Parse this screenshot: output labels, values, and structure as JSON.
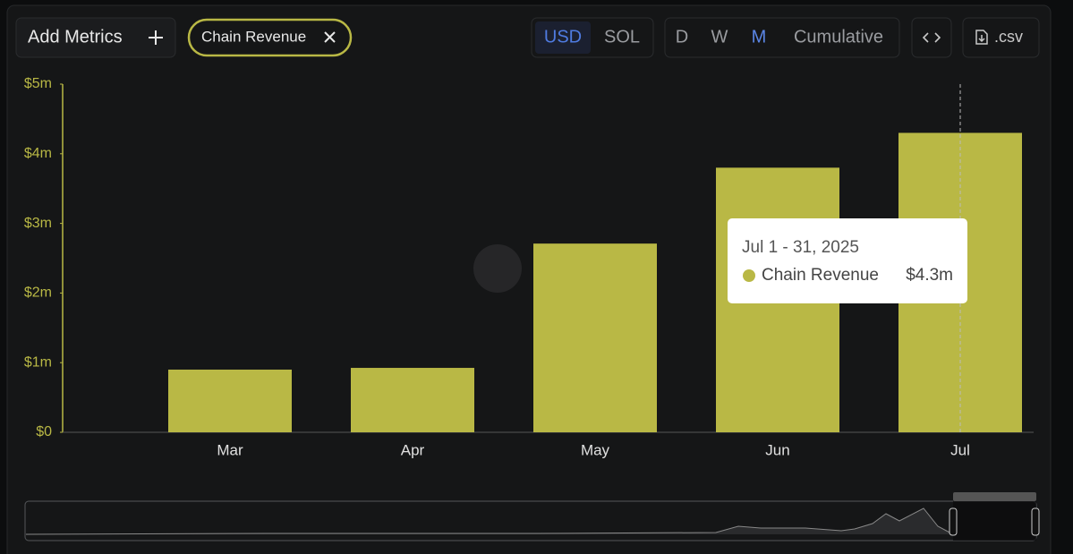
{
  "toolbar": {
    "add_metrics": "Add Metrics",
    "currencies": [
      "USD",
      "SOL"
    ],
    "intervals": [
      "D",
      "W",
      "M",
      "Cumulative"
    ],
    "export": ".csv"
  },
  "chart_data": {
    "type": "bar",
    "categories": [
      "Mar",
      "Apr",
      "May",
      "Jun",
      "Jul"
    ],
    "series": [
      {
        "name": "Chain Revenue",
        "color": "#b9b845",
        "values": [
          900000,
          925000,
          2710000,
          3800000,
          4300000
        ],
        "value_labels": [
          null,
          null,
          null,
          null,
          "$4.3m"
        ]
      }
    ],
    "ylim": [
      0,
      5000000
    ],
    "yticks": [
      {
        "value": 0,
        "label": "$0"
      },
      {
        "value": 1000000,
        "label": "$1m"
      },
      {
        "value": 2000000,
        "label": "$2m"
      },
      {
        "value": 3000000,
        "label": "$3m"
      },
      {
        "value": 4000000,
        "label": "$4m"
      },
      {
        "value": 5000000,
        "label": "$5m"
      }
    ],
    "tooltip_title": "Jul 1 - 31, 2025"
  }
}
